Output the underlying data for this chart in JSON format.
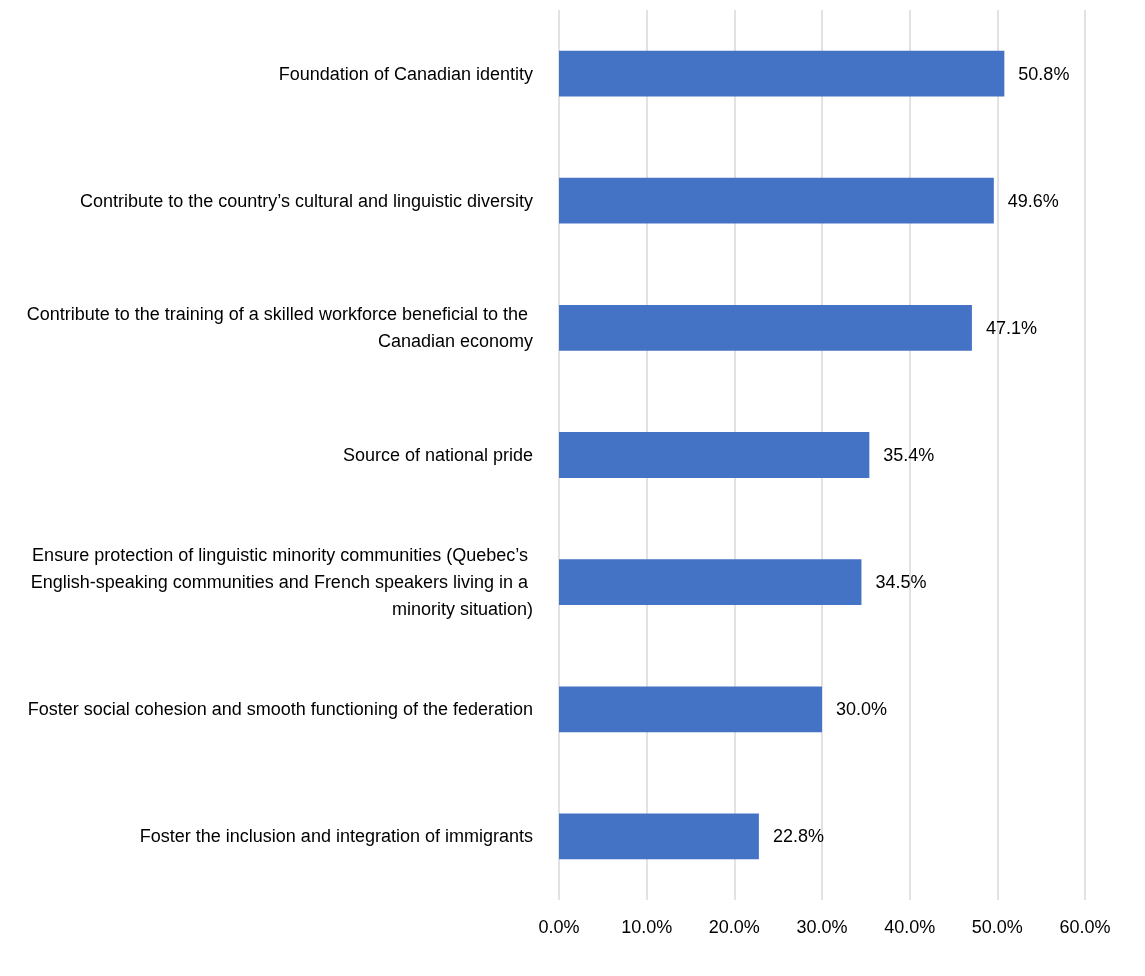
{
  "chart_data": {
    "type": "bar",
    "orientation": "horizontal",
    "categories": [
      "Foundation of Canadian identity",
      "Contribute to the country’s cultural and linguistic diversity",
      "Contribute to the training of a skilled workforce beneficial to the Canadian economy",
      "Source of national pride",
      "Ensure protection of linguistic minority communities (Quebec’s English-speaking communities and French speakers living in a minority situation)",
      "Foster social cohesion and smooth functioning of the federation",
      "Foster the inclusion and integration of immigrants"
    ],
    "values": [
      50.8,
      49.6,
      47.1,
      35.4,
      34.5,
      30.0,
      22.8
    ],
    "value_labels": [
      "50.8%",
      "49.6%",
      "47.1%",
      "35.4%",
      "34.5%",
      "30.0%",
      "22.8%"
    ],
    "color": "#4472c4",
    "xlim": [
      0,
      60
    ],
    "xticks": [
      {
        "value": 0,
        "label": "0.0%"
      },
      {
        "value": 10,
        "label": "10.0%"
      },
      {
        "value": 20,
        "label": "20.0%"
      },
      {
        "value": 30,
        "label": "30.0%"
      },
      {
        "value": 40,
        "label": "40.0%"
      },
      {
        "value": 50,
        "label": "50.0%"
      },
      {
        "value": 60,
        "label": "60.0%"
      }
    ],
    "grid": "x"
  }
}
